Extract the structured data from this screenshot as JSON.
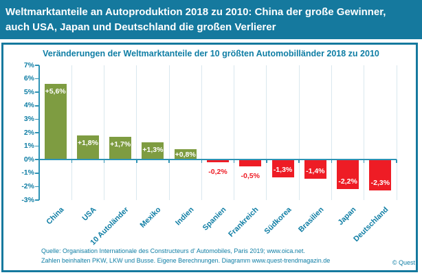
{
  "header": {
    "lines": [
      "Weltmarktanteile an Autoproduktion 2018 zu 2010: China der große Gewinner,",
      "auch USA, Japan und Deutschland die großen Verlierer"
    ]
  },
  "chart_data": {
    "type": "bar",
    "title": "Veränderungen der Weltmarktanteile der 10 größten Automobilländer 2018 zu 2010",
    "categories": [
      "China",
      "USA",
      "10 Autoländer",
      "Mexiko",
      "Indien",
      "Spanien",
      "Frankreich",
      "Südkorea",
      "Brasilien",
      "Japan",
      "Deutschland"
    ],
    "values": [
      5.6,
      1.8,
      1.7,
      1.3,
      0.8,
      -0.2,
      -0.5,
      -1.3,
      -1.4,
      -2.2,
      -2.3
    ],
    "value_labels": [
      "+5,6%",
      "+1,8%",
      "+1,7%",
      "+1,3%",
      "+0,8%",
      "-0,2%",
      "-0,5%",
      "-1,3%",
      "-1,4%",
      "-2,2%",
      "-2,3%"
    ],
    "xlabel": "",
    "ylabel": "",
    "ylim": [
      -3,
      7
    ],
    "ytick_labels": [
      "7%",
      "6%",
      "5%",
      "4%",
      "3%",
      "2%",
      "1%",
      "0%",
      "-1%",
      "-2%",
      "-3%"
    ],
    "grid": "vertical-category-separators",
    "legend": "none"
  },
  "colors": {
    "header_background": "#15799e",
    "panel_border": "#15799e",
    "title_text": "#0e7da4",
    "axis_line": "#2d93b5",
    "gridline": "#d9e7ee",
    "positive_bar": "#7e9c41",
    "negative_bar": "#ee1c25",
    "bar_label_inside": "#ffffff",
    "bar_label_outside": "#ee1c25"
  },
  "footer": {
    "source_line1": "Quelle: Organisation Internationale des Constructeurs d' Automobiles, Paris 2019; www.oica.net.",
    "source_line2": "Zahlen beinhalten PKW, LKW und Busse. Eigene Berechnungen. Diagramm www.quest-trendmagazin.de",
    "copyright": "© Quest"
  }
}
